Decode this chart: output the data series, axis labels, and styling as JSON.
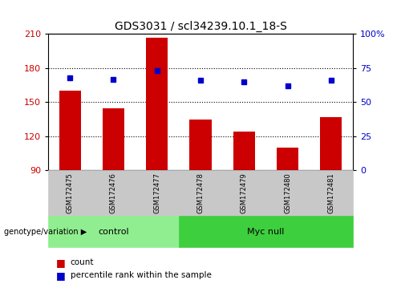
{
  "title": "GDS3031 / scl34239.10.1_18-S",
  "samples": [
    "GSM172475",
    "GSM172476",
    "GSM172477",
    "GSM172478",
    "GSM172479",
    "GSM172480",
    "GSM172481"
  ],
  "bar_values": [
    160,
    145,
    207,
    135,
    124,
    110,
    137
  ],
  "dot_values": [
    68,
    67,
    73,
    66,
    65,
    62,
    66
  ],
  "bar_color": "#cc0000",
  "dot_color": "#0000cc",
  "ylim_left": [
    90,
    210
  ],
  "ylim_right": [
    0,
    100
  ],
  "yticks_left": [
    90,
    120,
    150,
    180,
    210
  ],
  "yticks_right": [
    0,
    25,
    50,
    75,
    100
  ],
  "ytick_labels_right": [
    "0",
    "25",
    "50",
    "75",
    "100%"
  ],
  "grid_values": [
    120,
    150,
    180
  ],
  "groups": [
    {
      "label": "control",
      "n": 3,
      "color": "#90ee90"
    },
    {
      "label": "Myc null",
      "n": 4,
      "color": "#3ecf3e"
    }
  ],
  "group_label": "genotype/variation",
  "legend_items": [
    {
      "label": "count",
      "color": "#cc0000"
    },
    {
      "label": "percentile rank within the sample",
      "color": "#0000cc"
    }
  ],
  "bar_width": 0.5,
  "tick_label_color_left": "#cc0000",
  "tick_label_color_right": "#0000cc",
  "n_control": 3,
  "n_mycnull": 4
}
